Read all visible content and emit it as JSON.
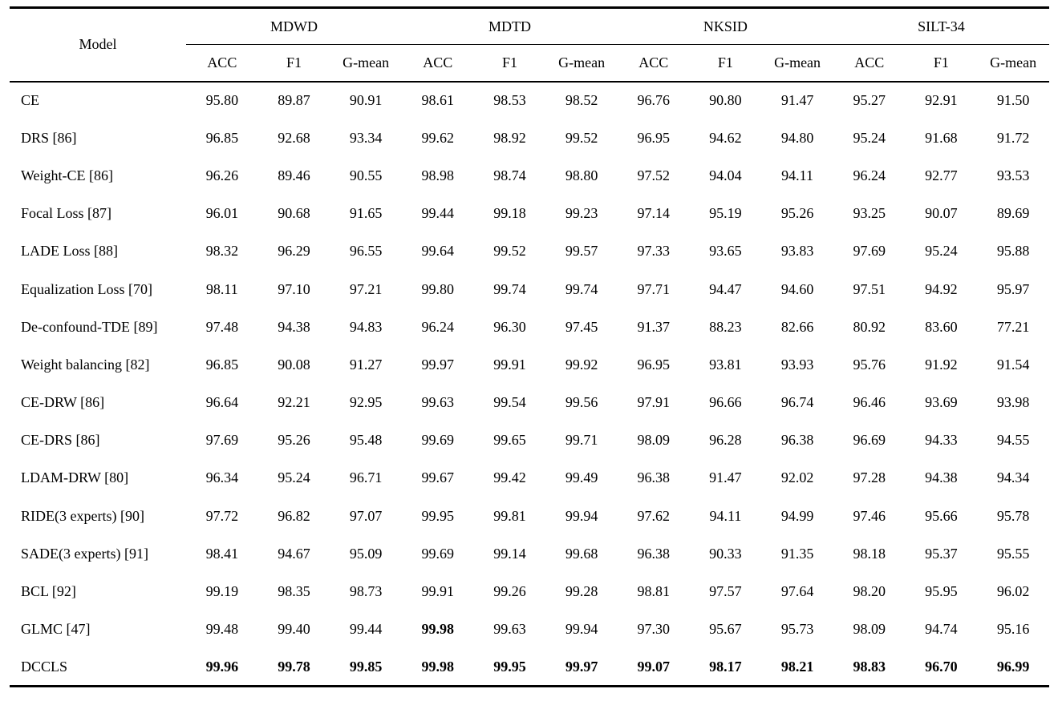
{
  "table": {
    "model_header": "Model",
    "groups": [
      {
        "label": "MDWD"
      },
      {
        "label": "MDTD"
      },
      {
        "label": "NKSID"
      },
      {
        "label": "SILT-34"
      }
    ],
    "sub_headers": [
      "ACC",
      "F1",
      "G-mean"
    ],
    "rows": [
      {
        "model": "CE",
        "values": [
          "95.80",
          "89.87",
          "90.91",
          "98.61",
          "98.53",
          "98.52",
          "96.76",
          "90.80",
          "91.47",
          "95.27",
          "92.91",
          "91.50"
        ],
        "bold": []
      },
      {
        "model": "DRS [86]",
        "values": [
          "96.85",
          "92.68",
          "93.34",
          "99.62",
          "98.92",
          "99.52",
          "96.95",
          "94.62",
          "94.80",
          "95.24",
          "91.68",
          "91.72"
        ],
        "bold": []
      },
      {
        "model": "Weight-CE [86]",
        "values": [
          "96.26",
          "89.46",
          "90.55",
          "98.98",
          "98.74",
          "98.80",
          "97.52",
          "94.04",
          "94.11",
          "96.24",
          "92.77",
          "93.53"
        ],
        "bold": []
      },
      {
        "model": "Focal Loss [87]",
        "values": [
          "96.01",
          "90.68",
          "91.65",
          "99.44",
          "99.18",
          "99.23",
          "97.14",
          "95.19",
          "95.26",
          "93.25",
          "90.07",
          "89.69"
        ],
        "bold": []
      },
      {
        "model": "LADE Loss [88]",
        "values": [
          "98.32",
          "96.29",
          "96.55",
          "99.64",
          "99.52",
          "99.57",
          "97.33",
          "93.65",
          "93.83",
          "97.69",
          "95.24",
          "95.88"
        ],
        "bold": []
      },
      {
        "model": "Equalization Loss [70]",
        "values": [
          "98.11",
          "97.10",
          "97.21",
          "99.80",
          "99.74",
          "99.74",
          "97.71",
          "94.47",
          "94.60",
          "97.51",
          "94.92",
          "95.97"
        ],
        "bold": []
      },
      {
        "model": "De-confound-TDE [89]",
        "values": [
          "97.48",
          "94.38",
          "94.83",
          "96.24",
          "96.30",
          "97.45",
          "91.37",
          "88.23",
          "82.66",
          "80.92",
          "83.60",
          "77.21"
        ],
        "bold": []
      },
      {
        "model": "Weight balancing [82]",
        "values": [
          "96.85",
          "90.08",
          "91.27",
          "99.97",
          "99.91",
          "99.92",
          "96.95",
          "93.81",
          "93.93",
          "95.76",
          "91.92",
          "91.54"
        ],
        "bold": []
      },
      {
        "model": "CE-DRW [86]",
        "values": [
          "96.64",
          "92.21",
          "92.95",
          "99.63",
          "99.54",
          "99.56",
          "97.91",
          "96.66",
          "96.74",
          "96.46",
          "93.69",
          "93.98"
        ],
        "bold": []
      },
      {
        "model": "CE-DRS [86]",
        "values": [
          "97.69",
          "95.26",
          "95.48",
          "99.69",
          "99.65",
          "99.71",
          "98.09",
          "96.28",
          "96.38",
          "96.69",
          "94.33",
          "94.55"
        ],
        "bold": []
      },
      {
        "model": "LDAM-DRW [80]",
        "values": [
          "96.34",
          "95.24",
          "96.71",
          "99.67",
          "99.42",
          "99.49",
          "96.38",
          "91.47",
          "92.02",
          "97.28",
          "94.38",
          "94.34"
        ],
        "bold": []
      },
      {
        "model": "RIDE(3 experts) [90]",
        "values": [
          "97.72",
          "96.82",
          "97.07",
          "99.95",
          "99.81",
          "99.94",
          "97.62",
          "94.11",
          "94.99",
          "97.46",
          "95.66",
          "95.78"
        ],
        "bold": []
      },
      {
        "model": "SADE(3 experts) [91]",
        "values": [
          "98.41",
          "94.67",
          "95.09",
          "99.69",
          "99.14",
          "99.68",
          "96.38",
          "90.33",
          "91.35",
          "98.18",
          "95.37",
          "95.55"
        ],
        "bold": []
      },
      {
        "model": "BCL [92]",
        "values": [
          "99.19",
          "98.35",
          "98.73",
          "99.91",
          "99.26",
          "99.28",
          "98.81",
          "97.57",
          "97.64",
          "98.20",
          "95.95",
          "96.02"
        ],
        "bold": []
      },
      {
        "model": "GLMC [47]",
        "values": [
          "99.48",
          "99.40",
          "99.44",
          "99.98",
          "99.63",
          "99.94",
          "97.30",
          "95.67",
          "95.73",
          "98.09",
          "94.74",
          "95.16"
        ],
        "bold": [
          3
        ]
      },
      {
        "model": "DCCLS",
        "values": [
          "99.96",
          "99.78",
          "99.85",
          "99.98",
          "99.95",
          "99.97",
          "99.07",
          "98.17",
          "98.21",
          "98.83",
          "96.70",
          "96.99"
        ],
        "bold": [
          0,
          1,
          2,
          3,
          4,
          5,
          6,
          7,
          8,
          9,
          10,
          11
        ]
      }
    ]
  }
}
